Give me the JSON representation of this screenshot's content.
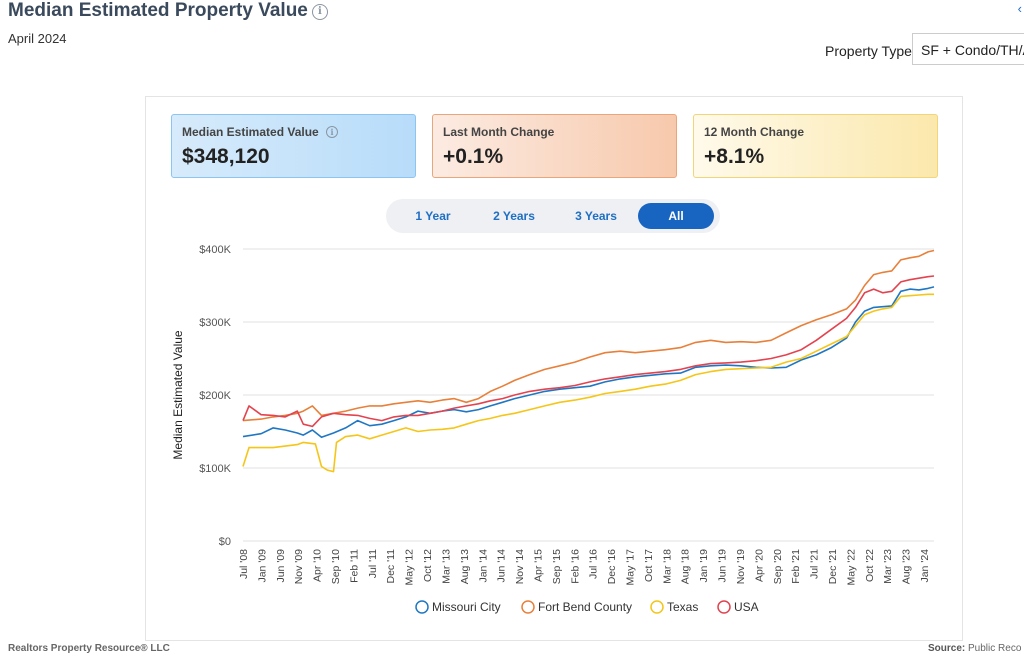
{
  "header": {
    "title": "Median Estimated Property Value",
    "info_icon": "info-icon",
    "period": "April 2024",
    "share_icon": "share-icon"
  },
  "filters": {
    "property_type_label": "Property Type",
    "property_type_value": "SF + Condo/TH/A"
  },
  "cards": [
    {
      "label": "Median Estimated Value",
      "value": "$348,120",
      "color": "#b7dcfa"
    },
    {
      "label": "Last Month Change",
      "value": "+0.1%",
      "color": "#f7c9ac"
    },
    {
      "label": "12 Month Change",
      "value": "+8.1%",
      "color": "#fbe8ac"
    }
  ],
  "range_buttons": {
    "selected": "All",
    "items": [
      "1 Year",
      "2 Years",
      "3 Years",
      "All"
    ]
  },
  "chart_data": {
    "type": "line",
    "title": "",
    "xlabel": "",
    "ylabel": "Median Estimated Value",
    "ylim": [
      0,
      400000
    ],
    "yticks": [
      0,
      100000,
      200000,
      300000,
      400000
    ],
    "ytick_labels": [
      "$0",
      "$100K",
      "$200K",
      "$300K",
      "$400K"
    ],
    "x_start": "Jul '08",
    "x_end": "Apr '24",
    "xtick_labels": [
      "Jul '08",
      "Jan '09",
      "Jun '09",
      "Nov '09",
      "Apr '10",
      "Sep '10",
      "Feb '11",
      "Jul '11",
      "Dec '11",
      "May '12",
      "Oct '12",
      "Mar '13",
      "Aug '13",
      "Jan '14",
      "Jun '14",
      "Nov '14",
      "Apr '15",
      "Sep '15",
      "Feb '16",
      "Jul '16",
      "Dec '16",
      "May '17",
      "Oct '17",
      "Mar '18",
      "Aug '18",
      "Jan '19",
      "Jun '19",
      "Nov '19",
      "Apr '20",
      "Sep '20",
      "Feb '21",
      "Jul '21",
      "Dec '21",
      "May '22",
      "Oct '22",
      "Mar '23",
      "Aug '23",
      "Jan '24"
    ],
    "grid": true,
    "legend_position": "bottom",
    "series": [
      {
        "name": "Missouri City",
        "color": "#1f77c4",
        "points": [
          [
            0,
            143000
          ],
          [
            6,
            147000
          ],
          [
            10,
            155000
          ],
          [
            14,
            152000
          ],
          [
            18,
            148000
          ],
          [
            20,
            145000
          ],
          [
            23,
            152000
          ],
          [
            26,
            142000
          ],
          [
            30,
            148000
          ],
          [
            34,
            155000
          ],
          [
            38,
            165000
          ],
          [
            42,
            158000
          ],
          [
            46,
            160000
          ],
          [
            50,
            165000
          ],
          [
            54,
            170000
          ],
          [
            58,
            178000
          ],
          [
            62,
            175000
          ],
          [
            66,
            178000
          ],
          [
            70,
            180000
          ],
          [
            74,
            177000
          ],
          [
            78,
            180000
          ],
          [
            82,
            185000
          ],
          [
            86,
            190000
          ],
          [
            90,
            195000
          ],
          [
            95,
            200000
          ],
          [
            100,
            205000
          ],
          [
            105,
            208000
          ],
          [
            110,
            210000
          ],
          [
            115,
            212000
          ],
          [
            120,
            218000
          ],
          [
            125,
            222000
          ],
          [
            130,
            225000
          ],
          [
            135,
            227000
          ],
          [
            140,
            229000
          ],
          [
            145,
            230000
          ],
          [
            150,
            238000
          ],
          [
            155,
            240000
          ],
          [
            160,
            241000
          ],
          [
            165,
            240000
          ],
          [
            170,
            238000
          ],
          [
            175,
            237000
          ],
          [
            180,
            238000
          ],
          [
            185,
            248000
          ],
          [
            190,
            255000
          ],
          [
            195,
            265000
          ],
          [
            200,
            278000
          ],
          [
            203,
            300000
          ],
          [
            206,
            315000
          ],
          [
            209,
            320000
          ],
          [
            212,
            321000
          ],
          [
            215,
            322000
          ],
          [
            218,
            342000
          ],
          [
            221,
            345000
          ],
          [
            224,
            344000
          ],
          [
            227,
            346000
          ],
          [
            229,
            348120
          ]
        ]
      },
      {
        "name": "Fort Bend County",
        "color": "#e8803a",
        "points": [
          [
            0,
            165000
          ],
          [
            6,
            167000
          ],
          [
            10,
            170000
          ],
          [
            14,
            172000
          ],
          [
            18,
            175000
          ],
          [
            20,
            178000
          ],
          [
            23,
            185000
          ],
          [
            26,
            172000
          ],
          [
            30,
            175000
          ],
          [
            34,
            178000
          ],
          [
            38,
            182000
          ],
          [
            42,
            185000
          ],
          [
            46,
            185000
          ],
          [
            50,
            188000
          ],
          [
            54,
            190000
          ],
          [
            58,
            192000
          ],
          [
            62,
            190000
          ],
          [
            66,
            193000
          ],
          [
            70,
            195000
          ],
          [
            74,
            190000
          ],
          [
            78,
            195000
          ],
          [
            82,
            205000
          ],
          [
            86,
            212000
          ],
          [
            90,
            220000
          ],
          [
            95,
            228000
          ],
          [
            100,
            235000
          ],
          [
            105,
            240000
          ],
          [
            110,
            245000
          ],
          [
            115,
            252000
          ],
          [
            120,
            258000
          ],
          [
            125,
            260000
          ],
          [
            130,
            258000
          ],
          [
            135,
            260000
          ],
          [
            140,
            262000
          ],
          [
            145,
            265000
          ],
          [
            150,
            272000
          ],
          [
            155,
            275000
          ],
          [
            160,
            272000
          ],
          [
            165,
            273000
          ],
          [
            170,
            272000
          ],
          [
            175,
            275000
          ],
          [
            180,
            285000
          ],
          [
            185,
            295000
          ],
          [
            190,
            303000
          ],
          [
            195,
            310000
          ],
          [
            200,
            318000
          ],
          [
            203,
            330000
          ],
          [
            206,
            350000
          ],
          [
            209,
            365000
          ],
          [
            212,
            368000
          ],
          [
            215,
            370000
          ],
          [
            218,
            385000
          ],
          [
            221,
            388000
          ],
          [
            224,
            390000
          ],
          [
            227,
            396000
          ],
          [
            229,
            398000
          ]
        ]
      },
      {
        "name": "Texas",
        "color": "#f5c518",
        "points": [
          [
            0,
            102000
          ],
          [
            2,
            128000
          ],
          [
            6,
            128000
          ],
          [
            10,
            128000
          ],
          [
            14,
            130000
          ],
          [
            18,
            132000
          ],
          [
            20,
            135000
          ],
          [
            24,
            133000
          ],
          [
            26,
            102000
          ],
          [
            28,
            97000
          ],
          [
            30,
            95000
          ],
          [
            31,
            135000
          ],
          [
            34,
            143000
          ],
          [
            38,
            145000
          ],
          [
            42,
            140000
          ],
          [
            46,
            145000
          ],
          [
            50,
            150000
          ],
          [
            54,
            155000
          ],
          [
            58,
            150000
          ],
          [
            62,
            152000
          ],
          [
            66,
            153000
          ],
          [
            70,
            155000
          ],
          [
            74,
            160000
          ],
          [
            78,
            165000
          ],
          [
            82,
            168000
          ],
          [
            86,
            172000
          ],
          [
            90,
            175000
          ],
          [
            95,
            180000
          ],
          [
            100,
            185000
          ],
          [
            105,
            190000
          ],
          [
            110,
            193000
          ],
          [
            115,
            197000
          ],
          [
            120,
            202000
          ],
          [
            125,
            205000
          ],
          [
            130,
            208000
          ],
          [
            135,
            212000
          ],
          [
            140,
            215000
          ],
          [
            145,
            220000
          ],
          [
            150,
            228000
          ],
          [
            155,
            232000
          ],
          [
            160,
            235000
          ],
          [
            165,
            236000
          ],
          [
            170,
            237000
          ],
          [
            175,
            238000
          ],
          [
            180,
            245000
          ],
          [
            185,
            250000
          ],
          [
            190,
            260000
          ],
          [
            195,
            270000
          ],
          [
            200,
            280000
          ],
          [
            203,
            295000
          ],
          [
            206,
            310000
          ],
          [
            209,
            315000
          ],
          [
            212,
            318000
          ],
          [
            215,
            320000
          ],
          [
            218,
            335000
          ],
          [
            221,
            336000
          ],
          [
            224,
            337000
          ],
          [
            227,
            338000
          ],
          [
            229,
            338000
          ]
        ]
      },
      {
        "name": "USA",
        "color": "#e3434f",
        "points": [
          [
            0,
            165000
          ],
          [
            2,
            185000
          ],
          [
            6,
            173000
          ],
          [
            10,
            172000
          ],
          [
            14,
            170000
          ],
          [
            18,
            178000
          ],
          [
            20,
            160000
          ],
          [
            23,
            157000
          ],
          [
            26,
            170000
          ],
          [
            30,
            175000
          ],
          [
            34,
            173000
          ],
          [
            38,
            172000
          ],
          [
            42,
            168000
          ],
          [
            46,
            165000
          ],
          [
            50,
            170000
          ],
          [
            54,
            172000
          ],
          [
            58,
            172000
          ],
          [
            62,
            175000
          ],
          [
            66,
            178000
          ],
          [
            70,
            182000
          ],
          [
            74,
            185000
          ],
          [
            78,
            188000
          ],
          [
            82,
            192000
          ],
          [
            86,
            195000
          ],
          [
            90,
            200000
          ],
          [
            95,
            205000
          ],
          [
            100,
            208000
          ],
          [
            105,
            210000
          ],
          [
            110,
            213000
          ],
          [
            115,
            218000
          ],
          [
            120,
            222000
          ],
          [
            125,
            225000
          ],
          [
            130,
            228000
          ],
          [
            135,
            230000
          ],
          [
            140,
            232000
          ],
          [
            145,
            235000
          ],
          [
            150,
            240000
          ],
          [
            155,
            243000
          ],
          [
            160,
            244000
          ],
          [
            165,
            245000
          ],
          [
            170,
            247000
          ],
          [
            175,
            250000
          ],
          [
            180,
            255000
          ],
          [
            185,
            262000
          ],
          [
            190,
            275000
          ],
          [
            195,
            290000
          ],
          [
            200,
            305000
          ],
          [
            203,
            320000
          ],
          [
            206,
            340000
          ],
          [
            209,
            345000
          ],
          [
            212,
            340000
          ],
          [
            215,
            342000
          ],
          [
            218,
            355000
          ],
          [
            221,
            358000
          ],
          [
            224,
            360000
          ],
          [
            227,
            362000
          ],
          [
            229,
            363000
          ]
        ]
      }
    ]
  },
  "footer": {
    "left": "Realtors Property Resource",
    "left_suffix": "® LLC",
    "right_label": "Source:",
    "right_value": "Public Reco"
  }
}
